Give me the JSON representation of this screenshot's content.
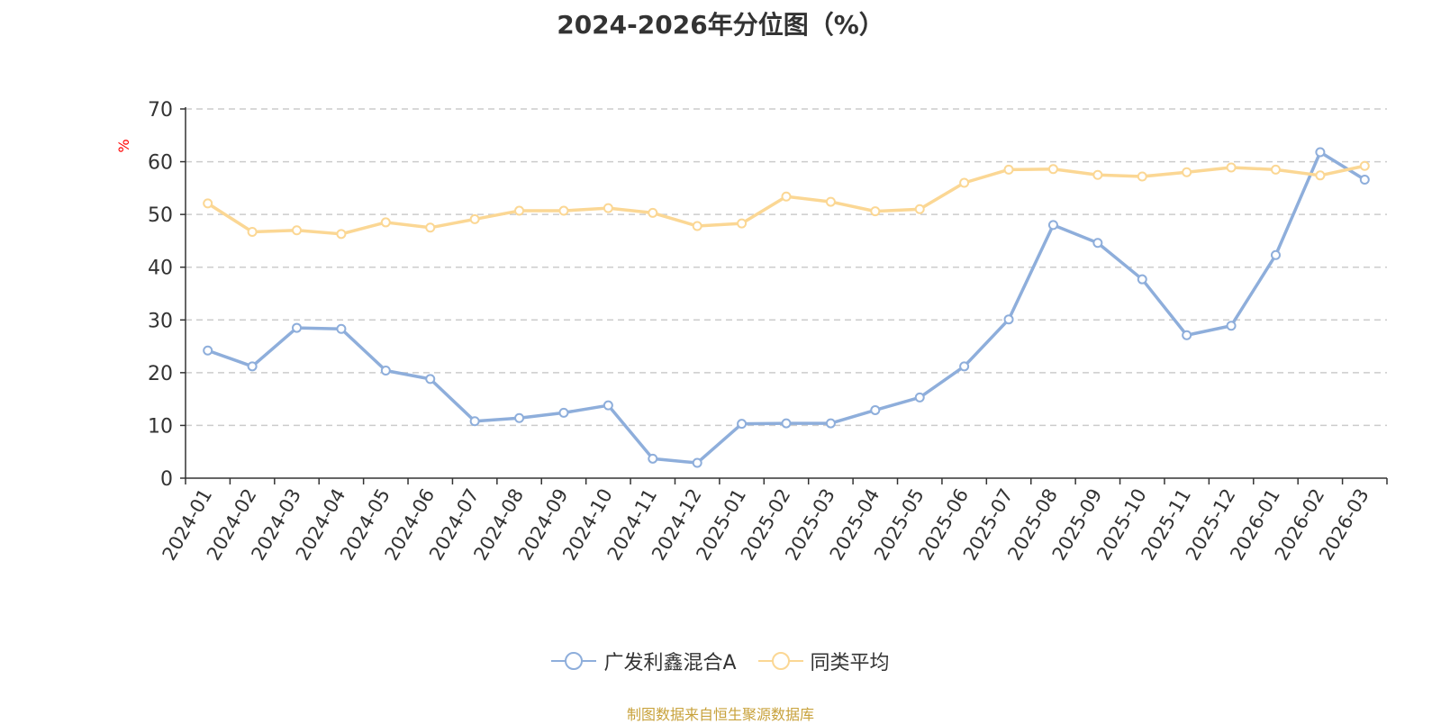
{
  "chart_data": {
    "type": "line",
    "title": "2024-2026年分位图（%）",
    "ylabel": "%",
    "xlabel": "",
    "ylim": [
      0,
      70
    ],
    "yticks": [
      0,
      10,
      20,
      30,
      40,
      50,
      60,
      70
    ],
    "grid": true,
    "legend_position": "bottom-center",
    "categories": [
      "2024-01",
      "2024-02",
      "2024-03",
      "2024-04",
      "2024-05",
      "2024-06",
      "2024-07",
      "2024-08",
      "2024-09",
      "2024-10",
      "2024-11",
      "2024-12",
      "2025-01",
      "2025-02",
      "2025-03",
      "2025-04",
      "2025-05",
      "2025-06",
      "2025-07",
      "2025-08",
      "2025-09",
      "2025-10",
      "2025-11",
      "2025-12",
      "2026-01",
      "2026-02",
      "2026-03"
    ],
    "series": [
      {
        "name": "广发利鑫混合A",
        "color": "#8eaedb",
        "values": [
          24.2,
          21.2,
          28.5,
          28.3,
          20.4,
          18.8,
          10.8,
          11.4,
          12.4,
          13.8,
          3.7,
          2.9,
          10.3,
          10.4,
          10.4,
          12.9,
          15.3,
          21.2,
          30.1,
          48.0,
          44.6,
          37.7,
          27.1,
          28.9,
          42.3,
          61.8,
          56.6
        ]
      },
      {
        "name": "同类平均",
        "color": "#fbd794",
        "values": [
          52.1,
          46.7,
          47.0,
          46.3,
          48.5,
          47.5,
          49.1,
          50.7,
          50.7,
          51.2,
          50.3,
          47.8,
          48.3,
          53.4,
          52.4,
          50.6,
          51.0,
          56.0,
          58.5,
          58.6,
          57.5,
          57.2,
          58.0,
          58.9,
          58.5,
          57.4,
          59.2
        ]
      }
    ]
  },
  "footer": {
    "source": "制图数据来自恒生聚源数据库",
    "source_color": "#c8a23c"
  },
  "colors": {
    "axis": "#333333",
    "grid": "#cccccc",
    "ylabel": "#ff0000"
  }
}
